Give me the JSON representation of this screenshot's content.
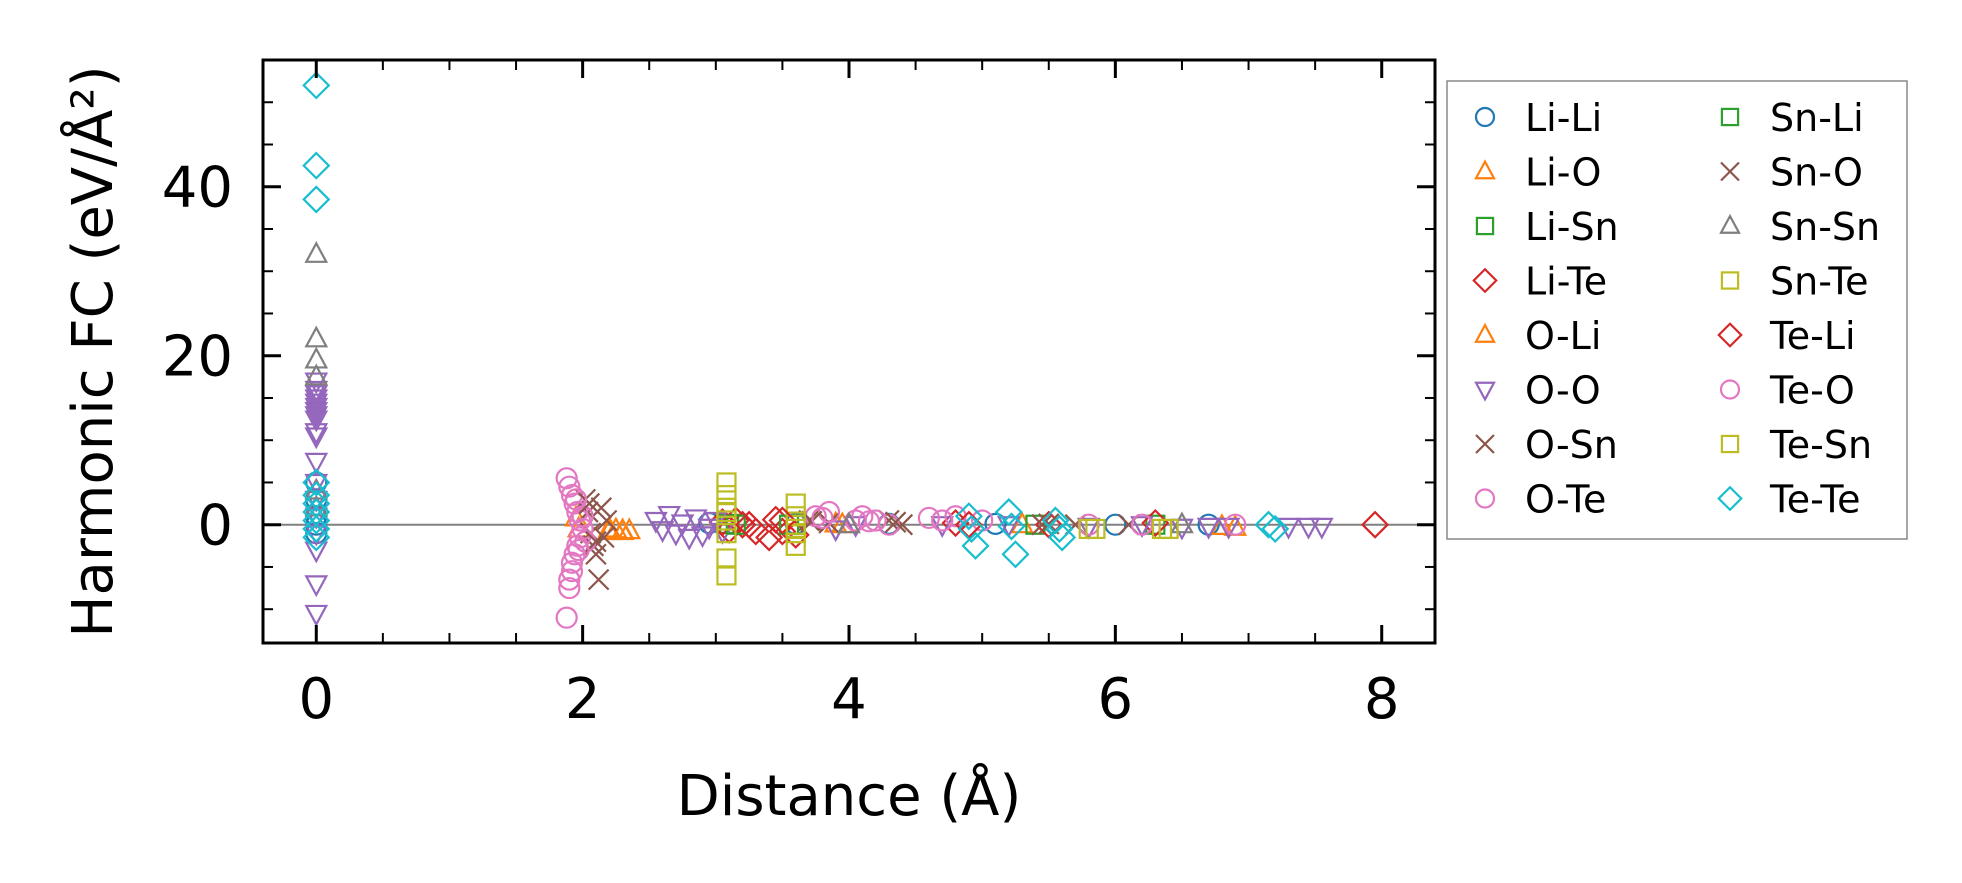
{
  "chart_data": {
    "type": "scatter",
    "title": "",
    "xlabel": "Distance (Å)",
    "ylabel": "Harmonic FC (eV/Å²)",
    "xlim": [
      -0.4,
      8.4
    ],
    "ylim": [
      -14,
      55
    ],
    "xticks": [
      0,
      2,
      4,
      6,
      8
    ],
    "yticks": [
      0,
      20,
      40
    ],
    "grid": false,
    "zero_line": true,
    "legend_position": "right (outside plot, 2 columns)",
    "series": [
      {
        "name": "Li-Li",
        "marker": "circle",
        "color": "#1f77b4",
        "points": [
          [
            0,
            5
          ],
          [
            0,
            3
          ],
          [
            0,
            1
          ],
          [
            0,
            0
          ],
          [
            0,
            -1
          ],
          [
            2.95,
            0.2
          ],
          [
            3.6,
            0.1
          ],
          [
            4.3,
            0.1
          ],
          [
            5.1,
            0.1
          ],
          [
            6.0,
            0.0
          ],
          [
            6.7,
            0.0
          ]
        ]
      },
      {
        "name": "Li-O",
        "marker": "triangle-up",
        "color": "#ff7f0e",
        "points": [
          [
            1.95,
            0.8
          ],
          [
            1.97,
            -0.5
          ],
          [
            2.2,
            -0.8
          ],
          [
            2.25,
            -0.6
          ],
          [
            2.3,
            -0.8
          ],
          [
            2.35,
            -0.7
          ],
          [
            3.9,
            0.1
          ],
          [
            5.3,
            0.0
          ],
          [
            6.9,
            -0.3
          ]
        ]
      },
      {
        "name": "Li-Sn",
        "marker": "square",
        "color": "#2ca02c",
        "points": [
          [
            3.1,
            0.1
          ],
          [
            3.6,
            0.0
          ],
          [
            5.4,
            0.0
          ],
          [
            6.3,
            0.0
          ]
        ]
      },
      {
        "name": "Li-Te",
        "marker": "diamond",
        "color": "#d62728",
        "points": [
          [
            3.05,
            0.3
          ],
          [
            3.1,
            -0.6
          ],
          [
            3.15,
            0.5
          ],
          [
            3.2,
            0.0
          ],
          [
            3.3,
            -0.8
          ],
          [
            3.4,
            -1.5
          ],
          [
            3.45,
            0.6
          ],
          [
            3.5,
            -0.8
          ],
          [
            3.6,
            -1.2
          ],
          [
            4.8,
            0.2
          ],
          [
            5.5,
            0.0
          ],
          [
            6.3,
            0.2
          ]
        ]
      },
      {
        "name": "O-Li",
        "marker": "triangle-up",
        "color": "#ff7f0e",
        "points": [
          [
            2.2,
            -0.5
          ],
          [
            2.3,
            -0.7
          ],
          [
            3.95,
            0.0
          ],
          [
            6.8,
            -0.2
          ]
        ]
      },
      {
        "name": "O-O",
        "marker": "triangle-down",
        "color": "#9467bd",
        "points": [
          [
            0,
            17
          ],
          [
            0,
            16
          ],
          [
            0,
            15.5
          ],
          [
            0,
            15
          ],
          [
            0,
            14.5
          ],
          [
            0,
            14
          ],
          [
            0,
            13.5
          ],
          [
            0,
            13
          ],
          [
            0,
            12.5
          ],
          [
            0,
            11
          ],
          [
            0,
            10.5
          ],
          [
            0,
            7.5
          ],
          [
            0,
            5
          ],
          [
            0,
            3
          ],
          [
            0,
            1
          ],
          [
            0,
            -1
          ],
          [
            0,
            -3
          ],
          [
            0,
            -7
          ],
          [
            0,
            -10.5
          ],
          [
            2.55,
            0.5
          ],
          [
            2.6,
            -0.6
          ],
          [
            2.65,
            1.2
          ],
          [
            2.7,
            -1.0
          ],
          [
            2.75,
            0.2
          ],
          [
            2.8,
            -1.5
          ],
          [
            2.85,
            0.8
          ],
          [
            2.9,
            -1.2
          ],
          [
            2.95,
            -0.3
          ],
          [
            3.0,
            0.5
          ],
          [
            3.05,
            -0.8
          ],
          [
            3.9,
            -0.5
          ],
          [
            4.05,
            0.0
          ],
          [
            4.7,
            0.0
          ],
          [
            5.2,
            0.0
          ],
          [
            5.8,
            -0.2
          ],
          [
            6.2,
            0.0
          ],
          [
            6.5,
            -0.3
          ],
          [
            6.7,
            -0.2
          ],
          [
            6.85,
            -0.2
          ],
          [
            7.3,
            -0.2
          ],
          [
            7.45,
            -0.2
          ],
          [
            7.55,
            -0.2
          ]
        ]
      },
      {
        "name": "O-Sn",
        "marker": "x",
        "color": "#8c564b",
        "points": [
          [
            2.02,
            3.0
          ],
          [
            2.04,
            1.5
          ],
          [
            2.06,
            -1.0
          ],
          [
            2.08,
            -2.5
          ],
          [
            2.1,
            -3.5
          ],
          [
            2.12,
            -6.5
          ],
          [
            2.14,
            2.0
          ],
          [
            2.16,
            -1.5
          ],
          [
            2.18,
            0.5
          ],
          [
            3.7,
            0.5
          ],
          [
            3.85,
            0.2
          ],
          [
            4.3,
            0.5
          ],
          [
            4.4,
            0.0
          ],
          [
            5.5,
            0.1
          ],
          [
            5.7,
            0.0
          ],
          [
            6.1,
            0.0
          ]
        ]
      },
      {
        "name": "O-Te",
        "marker": "circle",
        "color": "#e377c2",
        "points": [
          [
            1.88,
            5.5
          ],
          [
            1.88,
            -11
          ],
          [
            1.9,
            4.5
          ],
          [
            1.9,
            -6.5
          ],
          [
            1.9,
            -7.5
          ],
          [
            1.92,
            3.5
          ],
          [
            1.92,
            -4.5
          ],
          [
            1.92,
            -5.5
          ],
          [
            1.94,
            2.5
          ],
          [
            1.94,
            -3.5
          ],
          [
            1.96,
            1.5
          ],
          [
            1.96,
            -2.5
          ],
          [
            1.98,
            0.5
          ],
          [
            1.98,
            -1.5
          ],
          [
            2.0,
            -0.5
          ],
          [
            2.0,
            1.0
          ],
          [
            2.02,
            -2.0
          ],
          [
            3.75,
            1.0
          ],
          [
            3.85,
            1.5
          ],
          [
            4.05,
            0.5
          ],
          [
            4.1,
            1.0
          ],
          [
            4.2,
            0.5
          ],
          [
            4.3,
            0.0
          ],
          [
            4.6,
            0.8
          ],
          [
            4.7,
            0.5
          ],
          [
            4.8,
            1.0
          ],
          [
            5.0,
            0.5
          ],
          [
            5.8,
            0.0
          ],
          [
            6.2,
            0.0
          ],
          [
            6.9,
            0.0
          ]
        ]
      },
      {
        "name": "Sn-Li",
        "marker": "square",
        "color": "#2ca02c",
        "points": [
          [
            3.15,
            0.0
          ],
          [
            3.55,
            0.0
          ]
        ]
      },
      {
        "name": "Sn-O",
        "marker": "x",
        "color": "#8c564b",
        "points": [
          [
            2.05,
            2.5
          ],
          [
            2.1,
            -2.0
          ],
          [
            3.72,
            0.4
          ],
          [
            4.35,
            0.3
          ],
          [
            5.45,
            0.0
          ]
        ]
      },
      {
        "name": "Sn-Sn",
        "marker": "triangle-up",
        "color": "#7f7f7f",
        "points": [
          [
            0,
            32
          ],
          [
            0,
            22
          ],
          [
            0,
            19.5
          ],
          [
            0,
            17.5
          ],
          [
            0,
            4
          ],
          [
            0,
            2
          ],
          [
            4.0,
            0.0
          ],
          [
            6.5,
            0.0
          ]
        ]
      },
      {
        "name": "Sn-Te",
        "marker": "square",
        "color": "#bcbd22",
        "points": [
          [
            3.08,
            5.0
          ],
          [
            3.08,
            3.5
          ],
          [
            3.08,
            2.0
          ],
          [
            3.08,
            0.5
          ],
          [
            3.08,
            -1.0
          ],
          [
            3.08,
            -4.0
          ],
          [
            3.08,
            -6.0
          ],
          [
            3.6,
            2.5
          ],
          [
            3.6,
            1.0
          ],
          [
            3.6,
            0.0
          ],
          [
            3.6,
            -1.0
          ],
          [
            3.6,
            -2.5
          ],
          [
            5.8,
            -0.5
          ],
          [
            6.35,
            -0.5
          ]
        ]
      },
      {
        "name": "Te-Li",
        "marker": "diamond",
        "color": "#d62728",
        "points": [
          [
            3.25,
            0.0
          ],
          [
            3.5,
            0.5
          ],
          [
            4.9,
            0.0
          ],
          [
            7.95,
            0.0
          ]
        ]
      },
      {
        "name": "Te-O",
        "marker": "circle",
        "color": "#e377c2",
        "points": [
          [
            1.95,
            3.0
          ],
          [
            1.97,
            -3.0
          ],
          [
            3.8,
            0.8
          ],
          [
            4.15,
            0.4
          ]
        ]
      },
      {
        "name": "Te-Sn",
        "marker": "square",
        "color": "#bcbd22",
        "points": [
          [
            3.08,
            1.5
          ],
          [
            3.6,
            -0.5
          ],
          [
            5.85,
            -0.5
          ],
          [
            6.4,
            -0.5
          ]
        ]
      },
      {
        "name": "Te-Te",
        "marker": "diamond",
        "color": "#17becf",
        "points": [
          [
            0,
            52
          ],
          [
            0,
            42.5
          ],
          [
            0,
            38.5
          ],
          [
            0,
            5
          ],
          [
            0,
            3.5
          ],
          [
            0,
            2.5
          ],
          [
            0,
            1.5
          ],
          [
            0,
            0.5
          ],
          [
            0,
            -0.5
          ],
          [
            0,
            -1.5
          ],
          [
            4.9,
            1.0
          ],
          [
            4.92,
            -0.5
          ],
          [
            4.95,
            -2.5
          ],
          [
            5.2,
            1.5
          ],
          [
            5.22,
            -0.2
          ],
          [
            5.25,
            -3.5
          ],
          [
            5.55,
            0.5
          ],
          [
            5.58,
            -0.5
          ],
          [
            5.6,
            -1.5
          ],
          [
            7.15,
            0.0
          ],
          [
            7.2,
            -0.5
          ]
        ]
      }
    ]
  }
}
